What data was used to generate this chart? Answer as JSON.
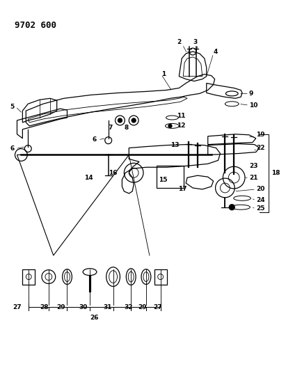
{
  "title": "9702 600",
  "bg_color": "#ffffff",
  "fg_color": "#000000",
  "fig_width": 4.11,
  "fig_height": 5.33,
  "dpi": 100
}
